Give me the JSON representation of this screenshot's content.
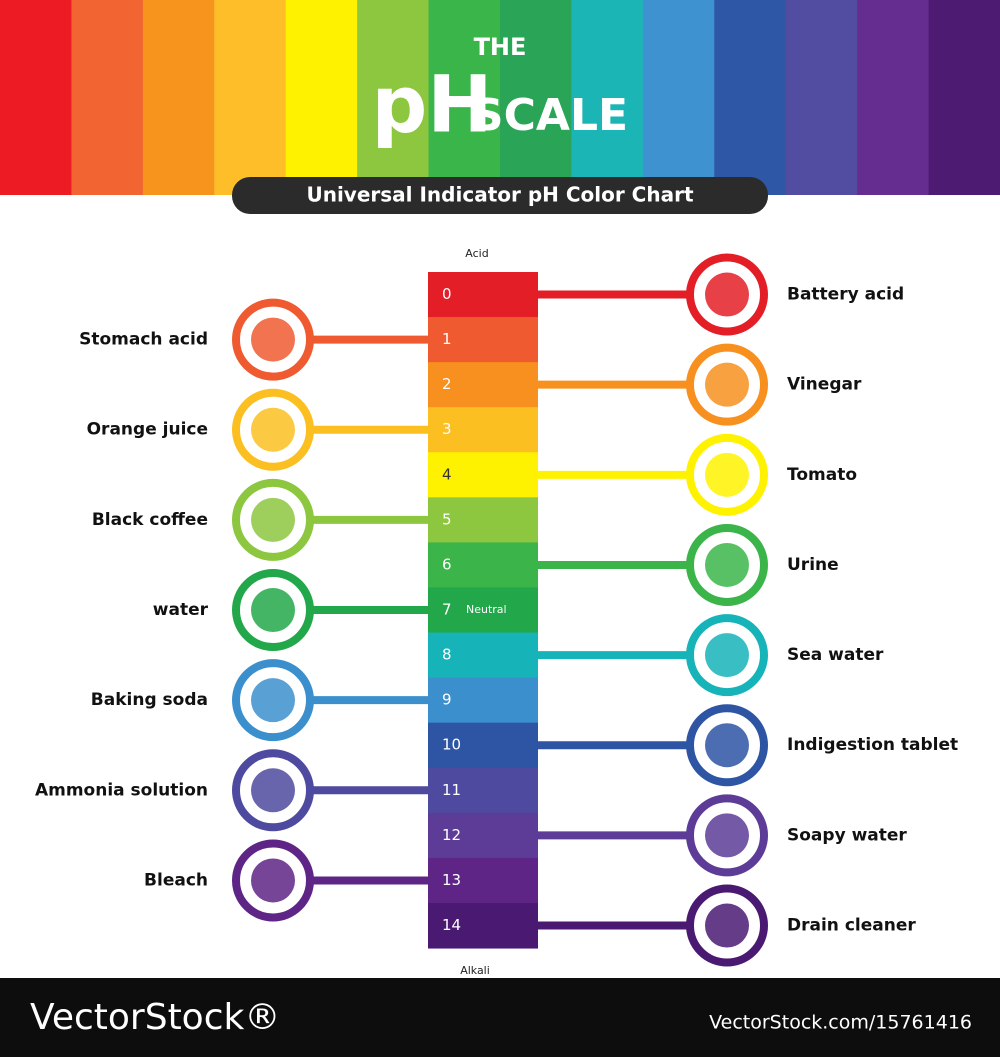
{
  "header": {
    "the": "THE",
    "ph": "pH",
    "scale": "SCALE",
    "subtitle": "Universal Indicator pH Color Chart"
  },
  "scale": {
    "acid": "Acid",
    "neutral": "Neutral",
    "alkali": "Alkali",
    "levels": [
      {
        "ph": 0,
        "color": "#e31e26",
        "substance": "Battery acid"
      },
      {
        "ph": 1,
        "color": "#f05a30",
        "substance": "Stomach acid"
      },
      {
        "ph": 2,
        "color": "#f7901e",
        "substance": "Vinegar"
      },
      {
        "ph": 3,
        "color": "#fcbf22",
        "substance": "Orange juice"
      },
      {
        "ph": 4,
        "color": "#fff200",
        "substance": "Tomato"
      },
      {
        "ph": 5,
        "color": "#8dc63f",
        "substance": "Black coffee"
      },
      {
        "ph": 6,
        "color": "#3bb54a",
        "substance": "Urine"
      },
      {
        "ph": 7,
        "color": "#22a84a",
        "substance": "water"
      },
      {
        "ph": 8,
        "color": "#16b3b8",
        "substance": "Sea water"
      },
      {
        "ph": 9,
        "color": "#3c8fcd",
        "substance": "Baking soda"
      },
      {
        "ph": 10,
        "color": "#2e54a4",
        "substance": "Indigestion tablet"
      },
      {
        "ph": 11,
        "color": "#4e4a9f",
        "substance": "Ammonia solution"
      },
      {
        "ph": 12,
        "color": "#5c3c97",
        "substance": "Soapy water"
      },
      {
        "ph": 13,
        "color": "#5e2586",
        "substance": "Bleach"
      },
      {
        "ph": 14,
        "color": "#4a1a72",
        "substance": "Drain cleaner"
      }
    ]
  },
  "footer": {
    "brand": "VectorStock®",
    "id": "VectorStock.com/15761416"
  }
}
